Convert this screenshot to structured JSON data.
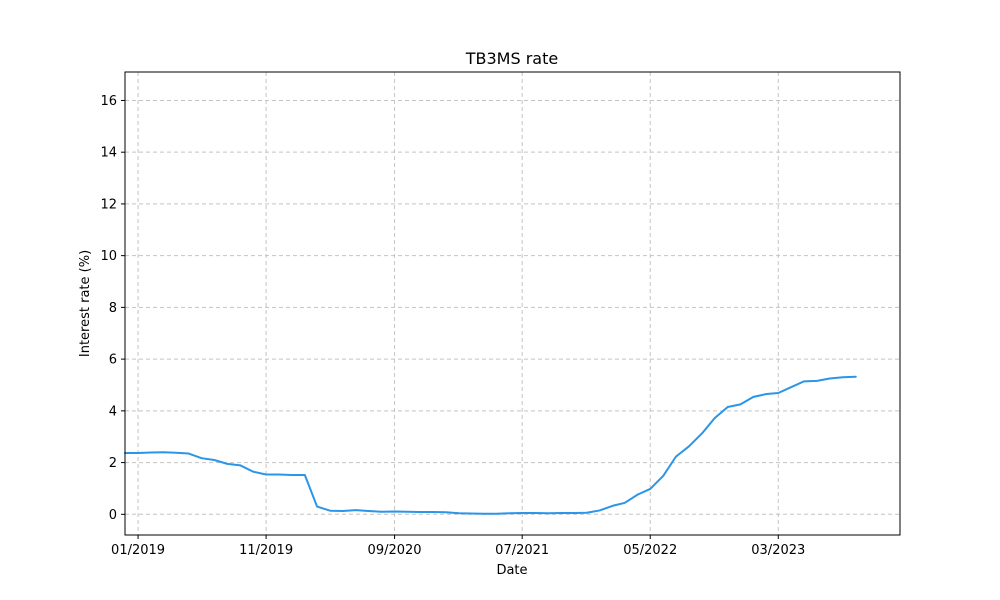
{
  "chart_data": {
    "type": "line",
    "title": "TB3MS rate",
    "xlabel": "Date",
    "ylabel": "Interest rate (%)",
    "xlim": [
      "2018-12-01",
      "2023-12-15"
    ],
    "ylim": [
      -0.8,
      17.1
    ],
    "x_ticks": [
      {
        "date": "2019-01-01",
        "label": "01/2019"
      },
      {
        "date": "2019-11-01",
        "label": "11/2019"
      },
      {
        "date": "2020-09-01",
        "label": "09/2020"
      },
      {
        "date": "2021-07-01",
        "label": "07/2021"
      },
      {
        "date": "2022-05-01",
        "label": "05/2022"
      },
      {
        "date": "2023-03-01",
        "label": "03/2023"
      }
    ],
    "y_ticks": [
      0,
      2,
      4,
      6,
      8,
      10,
      12,
      14,
      16
    ],
    "grid": true,
    "legend": "none",
    "colors": {
      "line": "#2b95e8"
    },
    "series": [
      {
        "x": [
          "2018-12-01",
          "2019-01-01",
          "2019-02-01",
          "2019-03-01",
          "2019-04-01",
          "2019-05-01",
          "2019-06-01",
          "2019-07-01",
          "2019-08-01",
          "2019-09-01",
          "2019-10-01",
          "2019-11-01",
          "2019-12-01",
          "2020-01-01",
          "2020-02-01",
          "2020-03-01",
          "2020-04-01",
          "2020-05-01",
          "2020-06-01",
          "2020-07-01",
          "2020-08-01",
          "2020-09-01",
          "2020-10-01",
          "2020-11-01",
          "2020-12-01",
          "2021-01-01",
          "2021-02-01",
          "2021-03-01",
          "2021-04-01",
          "2021-05-01",
          "2021-06-01",
          "2021-07-01",
          "2021-08-01",
          "2021-09-01",
          "2021-10-01",
          "2021-11-01",
          "2021-12-01",
          "2022-01-01",
          "2022-02-01",
          "2022-03-01",
          "2022-04-01",
          "2022-05-01",
          "2022-06-01",
          "2022-07-01",
          "2022-08-01",
          "2022-09-01",
          "2022-10-01",
          "2022-11-01",
          "2022-12-01",
          "2023-01-01",
          "2023-02-01",
          "2023-03-01",
          "2023-04-01",
          "2023-05-01",
          "2023-06-01",
          "2023-07-01",
          "2023-08-01",
          "2023-09-01"
        ],
        "values": [
          2.37,
          2.37,
          2.39,
          2.4,
          2.38,
          2.35,
          2.17,
          2.1,
          1.95,
          1.89,
          1.65,
          1.54,
          1.54,
          1.52,
          1.52,
          0.3,
          0.14,
          0.13,
          0.16,
          0.13,
          0.1,
          0.11,
          0.1,
          0.09,
          0.09,
          0.08,
          0.04,
          0.03,
          0.02,
          0.02,
          0.04,
          0.05,
          0.05,
          0.04,
          0.05,
          0.05,
          0.06,
          0.15,
          0.33,
          0.44,
          0.76,
          0.98,
          1.49,
          2.23,
          2.63,
          3.13,
          3.72,
          4.15,
          4.25,
          4.54,
          4.65,
          4.69,
          4.92,
          5.14,
          5.16,
          5.25,
          5.3,
          5.32
        ]
      }
    ]
  }
}
